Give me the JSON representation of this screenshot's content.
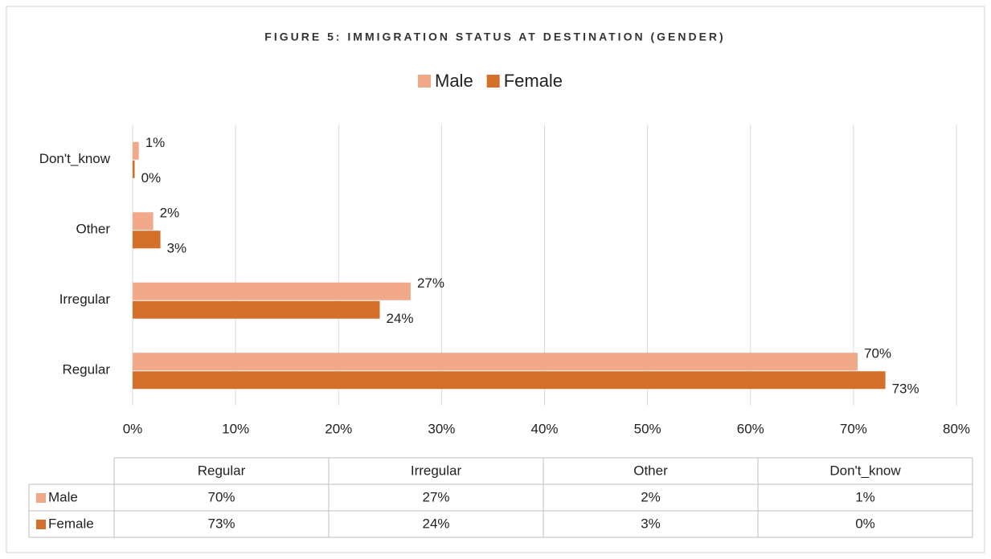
{
  "chart_data": {
    "type": "hbar",
    "title": "FIGURE 5: IMMIGRATION STATUS AT DESTINATION (GENDER)",
    "categories": [
      "Regular",
      "Irregular",
      "Other",
      "Don't_know"
    ],
    "series": [
      {
        "name": "Male",
        "color": "#f2a98a",
        "values": [
          70.4,
          27,
          2,
          0.6
        ],
        "value_labels": [
          "70%",
          "27%",
          "2%",
          "1%"
        ]
      },
      {
        "name": "Female",
        "color": "#d4702c",
        "values": [
          73.1,
          24,
          2.7,
          0.2
        ],
        "value_labels": [
          "73%",
          "24%",
          "3%",
          "0%"
        ]
      }
    ],
    "xlim": [
      0,
      80
    ],
    "xticks": [
      {
        "value": 0,
        "label": "0%"
      },
      {
        "value": 10,
        "label": "10%"
      },
      {
        "value": 20,
        "label": "20%"
      },
      {
        "value": 30,
        "label": "30%"
      },
      {
        "value": 40,
        "label": "40%"
      },
      {
        "value": 50,
        "label": "50%"
      },
      {
        "value": 60,
        "label": "60%"
      },
      {
        "value": 70,
        "label": "70%"
      },
      {
        "value": 80,
        "label": "80%"
      }
    ],
    "grid": true,
    "legend": "top",
    "data_table": true
  }
}
